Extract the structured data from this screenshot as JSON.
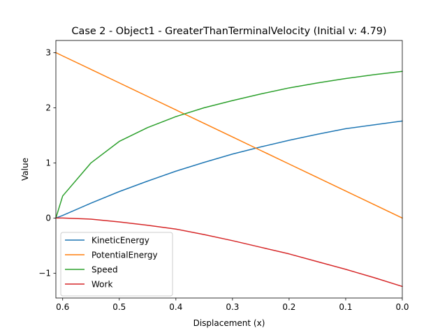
{
  "chart_data": {
    "type": "line",
    "title": "Case 2 - Object1 - GreaterThanTerminalVelocity (Initial v: 4.79)",
    "xlabel": "Displacement (x)",
    "ylabel": "Value",
    "xlim": [
      0.612,
      0.0
    ],
    "ylim": [
      -1.45,
      3.22
    ],
    "x_inverted": true,
    "grid": false,
    "legend_position": "lower-left",
    "x_ticks": [
      0.6,
      0.5,
      0.4,
      0.3,
      0.2,
      0.1,
      0.0
    ],
    "x_tick_labels": [
      "0.6",
      "0.5",
      "0.4",
      "0.3",
      "0.2",
      "0.1",
      "0.0"
    ],
    "y_ticks": [
      -1,
      0,
      1,
      2,
      3
    ],
    "y_tick_labels": [
      "−1",
      "0",
      "1",
      "2",
      "3"
    ],
    "x": [
      0.612,
      0.6,
      0.55,
      0.5,
      0.45,
      0.4,
      0.35,
      0.3,
      0.25,
      0.2,
      0.15,
      0.1,
      0.05,
      0.0
    ],
    "series": [
      {
        "name": "KineticEnergy",
        "color": "#1f77b4",
        "values": [
          0.0,
          0.048,
          0.27,
          0.48,
          0.67,
          0.85,
          1.01,
          1.16,
          1.29,
          1.41,
          1.52,
          1.62,
          1.69,
          1.76
        ]
      },
      {
        "name": "PotentialEnergy",
        "color": "#ff7f0e",
        "values": [
          3.0,
          2.94,
          2.696,
          2.451,
          2.206,
          1.961,
          1.716,
          1.471,
          1.225,
          0.98,
          0.735,
          0.49,
          0.245,
          0.0
        ]
      },
      {
        "name": "Speed",
        "color": "#2ca02c",
        "values": [
          0.0,
          0.4,
          1.0,
          1.39,
          1.64,
          1.84,
          2.0,
          2.13,
          2.25,
          2.36,
          2.45,
          2.53,
          2.6,
          2.66
        ]
      },
      {
        "name": "Work",
        "color": "#d62728",
        "values": [
          0.0,
          0.0,
          -0.02,
          -0.07,
          -0.13,
          -0.2,
          -0.3,
          -0.41,
          -0.53,
          -0.65,
          -0.79,
          -0.93,
          -1.08,
          -1.24
        ]
      }
    ]
  }
}
